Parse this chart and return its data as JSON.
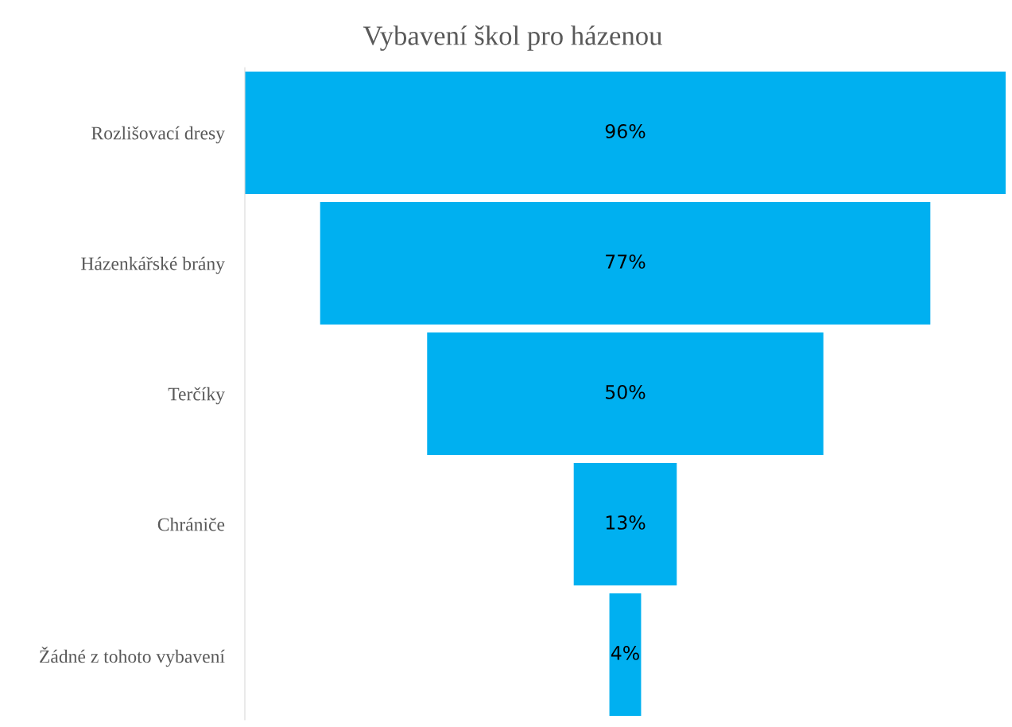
{
  "chart_data": {
    "type": "other",
    "title": "Vybavení škol pro házenou",
    "categories": [
      "Rozlišovací dresy",
      "Házenkářské brány",
      "Terčíky",
      "Chrániče",
      "Žádné z tohoto vybavení"
    ],
    "values": [
      96,
      77,
      50,
      13,
      4
    ],
    "value_labels": [
      "96%",
      "77%",
      "50%",
      "13%",
      "4%"
    ],
    "color": "#00b0f0"
  }
}
